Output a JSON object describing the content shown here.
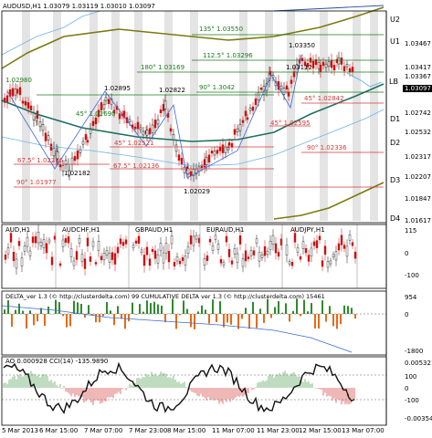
{
  "header": {
    "symbol_line": "AUDUSD,H1  1.03079 1.03119 1.03010 1.03097"
  },
  "colors": {
    "up": "#1a1a1a",
    "down": "#cc1111",
    "ma_fast": "#1f6f60",
    "ma_slow": "#7a7a10",
    "band": "#6fb3e6",
    "level": "#1e7a1e",
    "pivot": "#d63a3a",
    "shade": "#d9d9d9",
    "delta_up": "#2f8a2f",
    "delta_dn": "#e46b17"
  },
  "price_axis": {
    "ticks": [
      "1.03467",
      "1.03417",
      "1.03367",
      "1.03097",
      "1.02742",
      "1.02632",
      "1.02532",
      "1.02422",
      "1.02317",
      "1.02207",
      "1.02097",
      "1.01847",
      "1.01737",
      "1.01617"
    ],
    "current": "1.03097",
    "zone_labels": [
      "U2",
      "U1",
      "LB",
      "D1",
      "D2",
      "D3",
      "D4"
    ]
  },
  "main_labels": {
    "l135": "135° 1.03550",
    "l1125": "112.5° 1.03296",
    "l180": "180° 1.03169",
    "p1": "1.02980",
    "p2": "1.03350",
    "p3": "1.03112",
    "p4": "1.02895",
    "p5": "1.02822",
    "l90": "90° 1.3042",
    "l45a": "45° 1.02690",
    "l45b": "45° 1.02842",
    "l45c": "45° 1.02595",
    "l45d": "45° 1.02521",
    "l675a": "67.5° 1.02286",
    "l675b": "67.5° 1.02136",
    "l90b": "90° 1.02336",
    "p6": "1.02182",
    "l90c": "90° 1.01977",
    "p7": "1.02029"
  },
  "pair_panel": {
    "titles": [
      "AUD,H1",
      "AUDCHF,H1",
      "GBPAUD,H1",
      "EURAUD,H1",
      "AUDJPY,H1"
    ],
    "ticks": [
      "115",
      "0",
      "-100"
    ]
  },
  "delta_panel": {
    "title": "DELTA_ver 1.3 (© http://clusterdelta.com) 99  CUMULATIVE DELTA ver 1.3 (© http://clusterdelta.com)  15461",
    "ticks": [
      "954",
      "0",
      "-1800"
    ]
  },
  "ao_panel": {
    "title": "AO 0.000928  CCI(14) -135.9890",
    "ticks": [
      "0.005321",
      "100",
      "0",
      "-100",
      "-0.003546"
    ]
  },
  "time_axis": {
    "labels": [
      "5 Mar 2013",
      "6 Mar 15:00",
      "7 Mar 07:00",
      "7 Mar 23:00",
      "8 Mar 15:00",
      "11 Mar 07:00",
      "11 Mar 23:00",
      "12 Mar 15:00",
      "13 Mar 07:00"
    ]
  }
}
